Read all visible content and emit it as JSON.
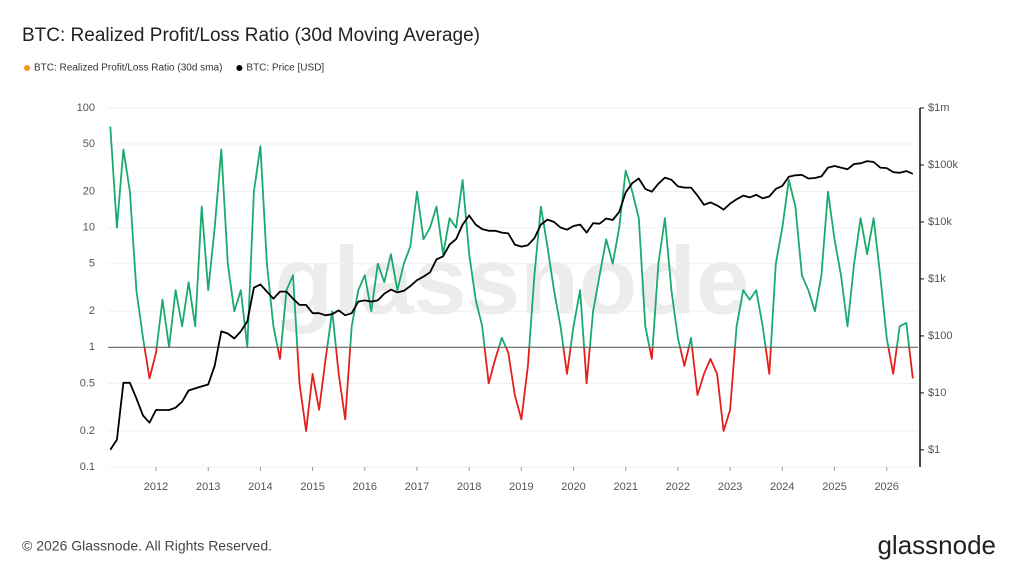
{
  "chart_data": {
    "type": "line",
    "title": "BTC: Realized Profit/Loss Ratio (30d Moving Average)",
    "watermark": "glassnode",
    "footer": "© 2026 Glassnode. All Rights Reserved.",
    "brand": "glassnode",
    "x": [
      2011.125,
      2011.25,
      2011.375,
      2011.5,
      2011.625,
      2011.75,
      2011.875,
      2012.0,
      2012.125,
      2012.25,
      2012.375,
      2012.5,
      2012.625,
      2012.75,
      2012.875,
      2013.0,
      2013.125,
      2013.25,
      2013.375,
      2013.5,
      2013.625,
      2013.75,
      2013.875,
      2014.0,
      2014.125,
      2014.25,
      2014.375,
      2014.5,
      2014.625,
      2014.75,
      2014.875,
      2015.0,
      2015.125,
      2015.25,
      2015.375,
      2015.5,
      2015.625,
      2015.75,
      2015.875,
      2016.0,
      2016.125,
      2016.25,
      2016.375,
      2016.5,
      2016.625,
      2016.75,
      2016.875,
      2017.0,
      2017.125,
      2017.25,
      2017.375,
      2017.5,
      2017.625,
      2017.75,
      2017.875,
      2018.0,
      2018.125,
      2018.25,
      2018.375,
      2018.5,
      2018.625,
      2018.75,
      2018.875,
      2019.0,
      2019.125,
      2019.25,
      2019.375,
      2019.5,
      2019.625,
      2019.75,
      2019.875,
      2020.0,
      2020.125,
      2020.25,
      2020.375,
      2020.5,
      2020.625,
      2020.75,
      2020.875,
      2021.0,
      2021.125,
      2021.25,
      2021.375,
      2021.5,
      2021.625,
      2021.75,
      2021.875,
      2022.0,
      2022.125,
      2022.25,
      2022.375,
      2022.5,
      2022.625,
      2022.75,
      2022.875,
      2023.0,
      2023.125,
      2023.25,
      2023.375,
      2023.5,
      2023.625,
      2023.75,
      2023.875,
      2024.0,
      2024.125,
      2024.25,
      2024.375,
      2024.5,
      2024.625,
      2024.75,
      2024.875,
      2025.0,
      2025.125,
      2025.25,
      2025.375,
      2025.5,
      2025.625,
      2025.75,
      2025.875,
      2026.0,
      2026.125,
      2026.25,
      2026.375,
      2026.5
    ],
    "series": [
      {
        "name": "BTC: Realized Profit/Loss Ratio (30d sma)",
        "color": "#f7931a",
        "axis": "y",
        "values": [
          70,
          10,
          45,
          20,
          3,
          1.2,
          0.55,
          0.9,
          2.5,
          1.0,
          3,
          1.5,
          3.5,
          1.5,
          15,
          3,
          10,
          45,
          5,
          2,
          3,
          1,
          20,
          48,
          5,
          1.5,
          0.8,
          3,
          4,
          0.5,
          0.2,
          0.6,
          0.3,
          0.8,
          2,
          0.6,
          0.25,
          1.5,
          3,
          4,
          2,
          5,
          3.5,
          6,
          3,
          5,
          7,
          20,
          8,
          10,
          15,
          6,
          12,
          10,
          25,
          6,
          2.5,
          1.5,
          0.5,
          0.8,
          1.2,
          0.9,
          0.4,
          0.25,
          0.7,
          4,
          15,
          7,
          3,
          1.5,
          0.6,
          1.5,
          3,
          0.5,
          2,
          4,
          8,
          5,
          10,
          30,
          20,
          12,
          1.5,
          0.8,
          5,
          12,
          3,
          1.2,
          0.7,
          1.2,
          0.4,
          0.6,
          0.8,
          0.6,
          0.2,
          0.3,
          1.5,
          3,
          2.5,
          3,
          1.5,
          0.6,
          5,
          10,
          25,
          15,
          4,
          3,
          2,
          4,
          20,
          8,
          4,
          1.5,
          5,
          12,
          6,
          12,
          4,
          1.2,
          0.6,
          1.5,
          1.6,
          0.55
        ]
      },
      {
        "name": "BTC: Price [USD]",
        "color": "#000000",
        "axis": "y2",
        "values": [
          1,
          1.5,
          15,
          15,
          8,
          4,
          3,
          5,
          5,
          5,
          5.5,
          7,
          11,
          12,
          13,
          14,
          30,
          120,
          110,
          90,
          120,
          180,
          700,
          800,
          600,
          450,
          600,
          600,
          450,
          350,
          350,
          250,
          250,
          230,
          240,
          280,
          230,
          250,
          400,
          420,
          400,
          420,
          550,
          650,
          580,
          620,
          750,
          950,
          1100,
          1300,
          2200,
          2500,
          4000,
          5000,
          9000,
          13000,
          9000,
          7500,
          7000,
          7000,
          6500,
          6300,
          4000,
          3700,
          3900,
          5200,
          9000,
          11000,
          10000,
          8000,
          7300,
          8500,
          9000,
          6500,
          9500,
          9300,
          11500,
          10800,
          15000,
          33000,
          48000,
          58000,
          38000,
          34000,
          47000,
          60000,
          55000,
          42000,
          40000,
          40000,
          29000,
          20000,
          22000,
          19500,
          16500,
          21000,
          25000,
          29000,
          27000,
          30000,
          26000,
          28000,
          38000,
          43000,
          62000,
          66000,
          67000,
          58000,
          59000,
          63000,
          90000,
          96000,
          90000,
          84000,
          104000,
          107000,
          117000,
          113000,
          90000,
          88000,
          75000,
          73000,
          78000,
          70000
        ]
      }
    ],
    "color_above": "#1aaa6e",
    "color_below": "#e3201b",
    "reference_line": 1,
    "xlim": [
      2011.08,
      2026.6
    ],
    "xticks": [
      2012,
      2013,
      2014,
      2015,
      2016,
      2017,
      2018,
      2019,
      2020,
      2021,
      2022,
      2023,
      2024,
      2025,
      2026
    ],
    "ylim": [
      0.1,
      100
    ],
    "ylog": true,
    "yticks": [
      0.1,
      0.2,
      0.5,
      1,
      2,
      5,
      10,
      20,
      50,
      100
    ],
    "y2lim": [
      0.5,
      1000000
    ],
    "y2log": true,
    "y2ticks": [
      {
        "value": 1,
        "label": "$1"
      },
      {
        "value": 10,
        "label": "$10"
      },
      {
        "value": 100,
        "label": "$100"
      },
      {
        "value": 1000,
        "label": "$1k"
      },
      {
        "value": 10000,
        "label": "$10k"
      },
      {
        "value": 100000,
        "label": "$100k"
      },
      {
        "value": 1000000,
        "label": "$1m"
      }
    ],
    "grid": true,
    "legend": "top-left"
  }
}
